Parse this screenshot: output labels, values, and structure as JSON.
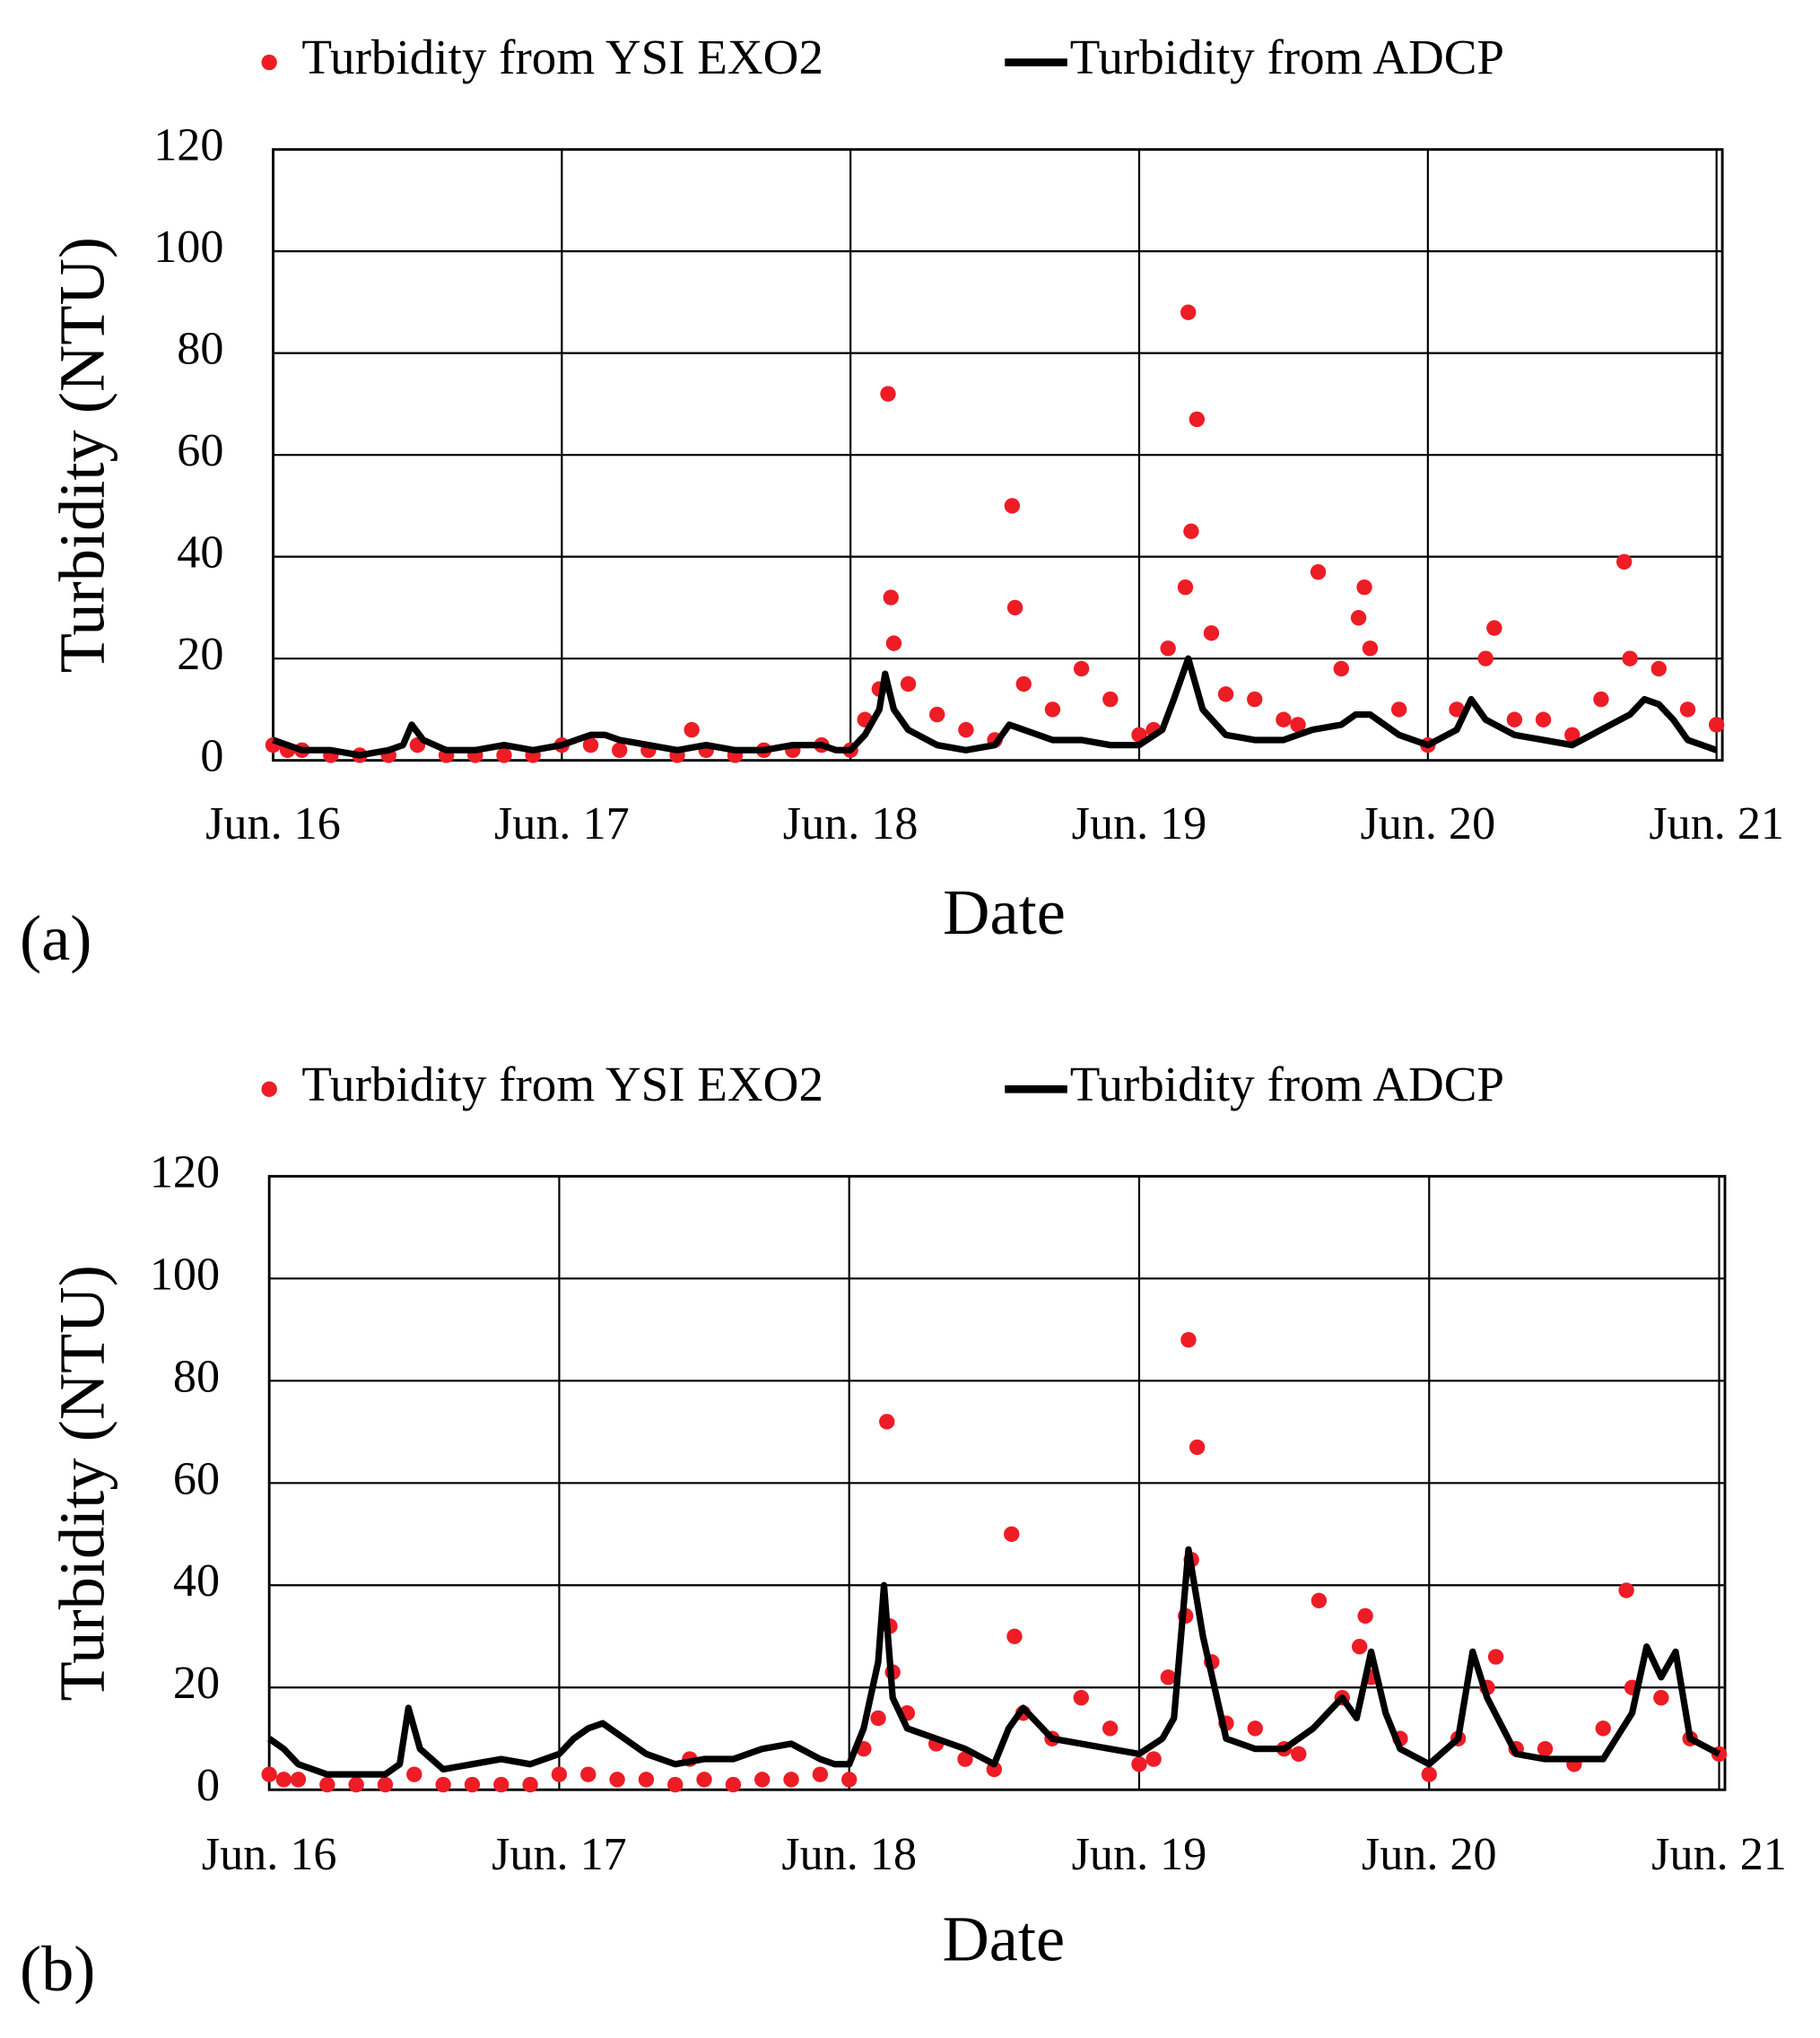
{
  "chart_data": [
    {
      "type": "scatter-line",
      "label": "(a)",
      "x_label": "Date",
      "y_label": "Turbidity (NTU)",
      "xlim": [
        0,
        5.02
      ],
      "ylim": [
        0,
        120
      ],
      "xticks": [
        {
          "value": 0,
          "label": "Jun. 16"
        },
        {
          "value": 1,
          "label": "Jun. 17"
        },
        {
          "value": 2,
          "label": "Jun. 18"
        },
        {
          "value": 3,
          "label": "Jun. 19"
        },
        {
          "value": 4,
          "label": "Jun. 20"
        },
        {
          "value": 5,
          "label": "Jun. 21"
        }
      ],
      "yticks": [
        0,
        20,
        40,
        60,
        80,
        100,
        120
      ],
      "grid": true,
      "series": [
        {
          "name": "Turbidity from YSI EXO2",
          "kind": "scatter",
          "color": "#ee1c25",
          "x": [
            0,
            0.05,
            0.1,
            0.2,
            0.3,
            0.4,
            0.5,
            0.6,
            0.7,
            0.8,
            0.9,
            1.0,
            1.1,
            1.2,
            1.3,
            1.4,
            1.45,
            1.5,
            1.6,
            1.7,
            1.8,
            1.9,
            2.0,
            2.05,
            2.1,
            2.13,
            2.14,
            2.15,
            2.2,
            2.3,
            2.4,
            2.5,
            2.56,
            2.57,
            2.6,
            2.7,
            2.8,
            2.9,
            3.0,
            3.05,
            3.1,
            3.16,
            3.17,
            3.18,
            3.2,
            3.25,
            3.3,
            3.4,
            3.5,
            3.55,
            3.62,
            3.7,
            3.76,
            3.78,
            3.8,
            3.9,
            4.0,
            4.1,
            4.2,
            4.23,
            4.3,
            4.4,
            4.5,
            4.6,
            4.68,
            4.7,
            4.8,
            4.9,
            5.0
          ],
          "values": [
            3,
            2,
            2,
            1,
            1,
            1,
            3,
            1,
            1,
            1,
            1,
            3,
            3,
            2,
            2,
            1,
            6,
            2,
            1,
            2,
            2,
            3,
            2,
            8,
            14,
            72,
            32,
            23,
            15,
            9,
            6,
            4,
            50,
            30,
            15,
            10,
            18,
            12,
            5,
            6,
            22,
            34,
            88,
            45,
            67,
            25,
            13,
            12,
            8,
            7,
            37,
            18,
            28,
            34,
            22,
            10,
            3,
            10,
            20,
            26,
            8,
            8,
            5,
            12,
            39,
            20,
            18,
            10,
            7
          ]
        },
        {
          "name": "Turbidity from ADCP",
          "kind": "line",
          "color": "#000000",
          "x": [
            0,
            0.05,
            0.1,
            0.2,
            0.3,
            0.4,
            0.45,
            0.48,
            0.52,
            0.6,
            0.7,
            0.8,
            0.9,
            1.0,
            1.05,
            1.1,
            1.15,
            1.2,
            1.3,
            1.4,
            1.5,
            1.6,
            1.7,
            1.8,
            1.9,
            1.95,
            2.0,
            2.05,
            2.1,
            2.12,
            2.15,
            2.2,
            2.3,
            2.4,
            2.5,
            2.55,
            2.6,
            2.7,
            2.8,
            2.9,
            3.0,
            3.08,
            3.12,
            3.17,
            3.22,
            3.3,
            3.4,
            3.5,
            3.6,
            3.7,
            3.75,
            3.8,
            3.85,
            3.9,
            4.0,
            4.1,
            4.15,
            4.2,
            4.3,
            4.4,
            4.5,
            4.6,
            4.7,
            4.75,
            4.8,
            4.85,
            4.9,
            5.0
          ],
          "values": [
            4,
            3,
            2,
            2,
            1,
            2,
            3,
            7,
            4,
            2,
            2,
            3,
            2,
            3,
            4,
            5,
            5,
            4,
            3,
            2,
            3,
            2,
            2,
            3,
            3,
            2,
            2,
            5,
            10,
            17,
            10,
            6,
            3,
            2,
            3,
            7,
            6,
            4,
            4,
            3,
            3,
            6,
            12,
            20,
            10,
            5,
            4,
            4,
            6,
            7,
            9,
            9,
            7,
            5,
            3,
            6,
            12,
            8,
            5,
            4,
            3,
            6,
            9,
            12,
            11,
            8,
            4,
            2
          ]
        }
      ]
    },
    {
      "type": "scatter-line",
      "label": "(b)",
      "x_label": "Date",
      "y_label": "Turbidity (NTU)",
      "xlim": [
        0,
        5.02
      ],
      "ylim": [
        0,
        120
      ],
      "xticks": [
        {
          "value": 0,
          "label": "Jun. 16"
        },
        {
          "value": 1,
          "label": "Jun. 17"
        },
        {
          "value": 2,
          "label": "Jun. 18"
        },
        {
          "value": 3,
          "label": "Jun. 19"
        },
        {
          "value": 4,
          "label": "Jun. 20"
        },
        {
          "value": 5,
          "label": "Jun. 21"
        }
      ],
      "yticks": [
        0,
        20,
        40,
        60,
        80,
        100,
        120
      ],
      "grid": true,
      "series": [
        {
          "name": "Turbidity from YSI EXO2",
          "kind": "scatter",
          "color": "#ee1c25",
          "x": [
            0,
            0.05,
            0.1,
            0.2,
            0.3,
            0.4,
            0.5,
            0.6,
            0.7,
            0.8,
            0.9,
            1.0,
            1.1,
            1.2,
            1.3,
            1.4,
            1.45,
            1.5,
            1.6,
            1.7,
            1.8,
            1.9,
            2.0,
            2.05,
            2.1,
            2.13,
            2.14,
            2.15,
            2.2,
            2.3,
            2.4,
            2.5,
            2.56,
            2.57,
            2.6,
            2.7,
            2.8,
            2.9,
            3.0,
            3.05,
            3.1,
            3.16,
            3.17,
            3.18,
            3.2,
            3.25,
            3.3,
            3.4,
            3.5,
            3.55,
            3.62,
            3.7,
            3.76,
            3.78,
            3.8,
            3.9,
            4.0,
            4.1,
            4.2,
            4.23,
            4.3,
            4.4,
            4.5,
            4.6,
            4.68,
            4.7,
            4.8,
            4.9,
            5.0
          ],
          "values": [
            3,
            2,
            2,
            1,
            1,
            1,
            3,
            1,
            1,
            1,
            1,
            3,
            3,
            2,
            2,
            1,
            6,
            2,
            1,
            2,
            2,
            3,
            2,
            8,
            14,
            72,
            32,
            23,
            15,
            9,
            6,
            4,
            50,
            30,
            15,
            10,
            18,
            12,
            5,
            6,
            22,
            34,
            88,
            45,
            67,
            25,
            13,
            12,
            8,
            7,
            37,
            18,
            28,
            34,
            22,
            10,
            3,
            10,
            20,
            26,
            8,
            8,
            5,
            12,
            39,
            20,
            18,
            10,
            7
          ]
        },
        {
          "name": "Turbidity from ADCP",
          "kind": "line",
          "color": "#000000",
          "x": [
            0,
            0.05,
            0.1,
            0.2,
            0.3,
            0.4,
            0.45,
            0.48,
            0.52,
            0.6,
            0.7,
            0.8,
            0.9,
            1.0,
            1.05,
            1.1,
            1.15,
            1.2,
            1.3,
            1.4,
            1.5,
            1.6,
            1.7,
            1.8,
            1.9,
            1.95,
            2.0,
            2.05,
            2.1,
            2.12,
            2.15,
            2.2,
            2.3,
            2.4,
            2.5,
            2.55,
            2.6,
            2.7,
            2.8,
            2.9,
            3.0,
            3.08,
            3.12,
            3.17,
            3.22,
            3.3,
            3.4,
            3.5,
            3.6,
            3.7,
            3.75,
            3.8,
            3.85,
            3.9,
            4.0,
            4.1,
            4.15,
            4.2,
            4.3,
            4.4,
            4.5,
            4.6,
            4.7,
            4.75,
            4.8,
            4.85,
            4.9,
            5.0
          ],
          "values": [
            10,
            8,
            5,
            3,
            3,
            3,
            5,
            16,
            8,
            4,
            5,
            6,
            5,
            7,
            10,
            12,
            13,
            11,
            7,
            5,
            6,
            6,
            8,
            9,
            6,
            5,
            5,
            12,
            25,
            40,
            18,
            12,
            10,
            8,
            5,
            12,
            16,
            10,
            9,
            8,
            7,
            10,
            14,
            47,
            30,
            10,
            8,
            8,
            12,
            18,
            14,
            27,
            15,
            8,
            5,
            10,
            27,
            18,
            7,
            6,
            6,
            6,
            15,
            28,
            22,
            27,
            10,
            7
          ]
        }
      ]
    }
  ]
}
